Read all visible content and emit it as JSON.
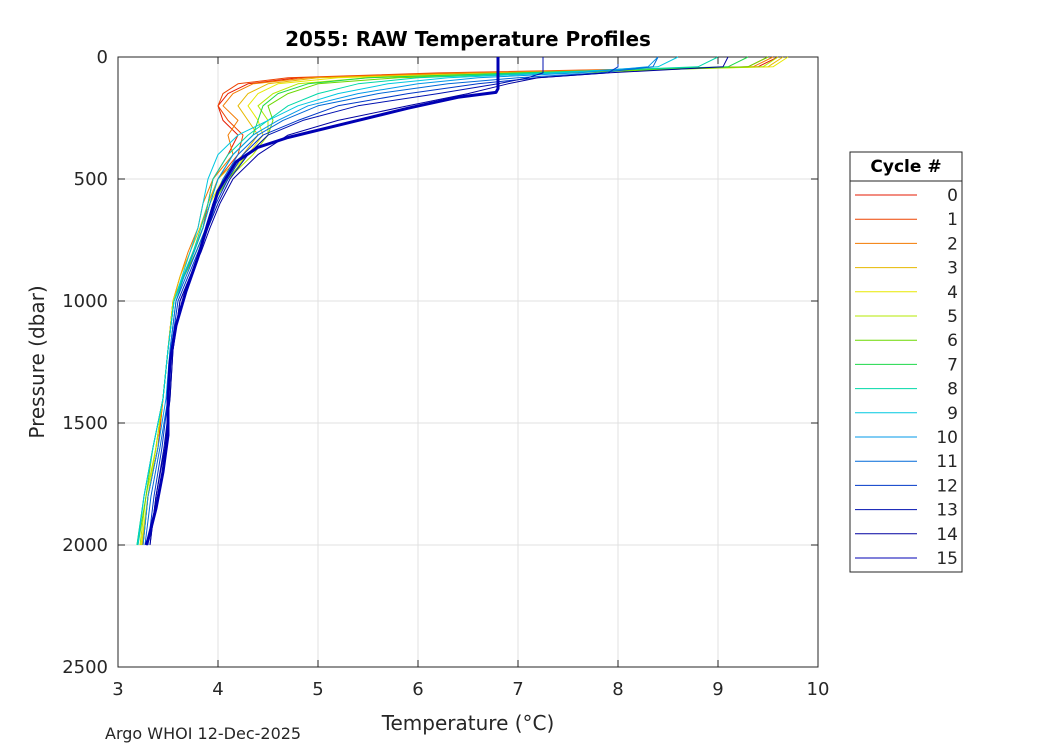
{
  "chart_data": {
    "type": "line",
    "title": "2055: RAW Temperature Profiles",
    "xlabel": "Temperature (°C)",
    "ylabel": "Pressure (dbar)",
    "xlim": [
      3,
      10
    ],
    "ylim": [
      0,
      2500
    ],
    "y_reversed": true,
    "grid": true,
    "xticks": [
      3,
      4,
      5,
      6,
      7,
      8,
      9,
      10
    ],
    "yticks": [
      0,
      500,
      1000,
      1500,
      2000,
      2500
    ],
    "legend": {
      "title": "Cycle #",
      "placement": "east-outside"
    },
    "series": [
      {
        "name": "0",
        "color": "#e61a00",
        "width": 1,
        "x": [
          9.6,
          9.4,
          6.5,
          4.8,
          4.3,
          4.1,
          4.0,
          4.05,
          4.2,
          4.1,
          3.95,
          3.9,
          3.85,
          3.75,
          3.65,
          3.55,
          3.5,
          3.45,
          3.4,
          3.3,
          3.25
        ],
        "p": [
          0,
          40,
          65,
          85,
          110,
          150,
          200,
          260,
          320,
          400,
          500,
          600,
          700,
          800,
          900,
          1000,
          1200,
          1400,
          1600,
          1800,
          2000
        ]
      },
      {
        "name": "1",
        "color": "#ee4300",
        "width": 1,
        "x": [
          9.5,
          9.3,
          6.2,
          4.7,
          4.2,
          4.05,
          4.0,
          4.1,
          4.25,
          4.2,
          4.0,
          3.9,
          3.85,
          3.75,
          3.65,
          3.55,
          3.5,
          3.45,
          3.4,
          3.3,
          3.25
        ],
        "p": [
          0,
          40,
          65,
          85,
          110,
          150,
          200,
          260,
          320,
          400,
          500,
          600,
          700,
          800,
          900,
          1000,
          1200,
          1400,
          1600,
          1800,
          2000
        ]
      },
      {
        "name": "2",
        "color": "#f27a00",
        "width": 1,
        "x": [
          9.55,
          9.35,
          6.4,
          4.9,
          4.35,
          4.15,
          4.05,
          4.2,
          4.1,
          4.15,
          3.95,
          3.85,
          3.8,
          3.7,
          3.62,
          3.55,
          3.5,
          3.45,
          3.38,
          3.3,
          3.25
        ],
        "p": [
          0,
          40,
          65,
          85,
          110,
          150,
          200,
          260,
          320,
          400,
          500,
          600,
          700,
          800,
          900,
          1000,
          1200,
          1400,
          1600,
          1800,
          2000
        ]
      },
      {
        "name": "3",
        "color": "#e6b800",
        "width": 1,
        "x": [
          9.65,
          9.5,
          6.8,
          5.0,
          4.5,
          4.3,
          4.2,
          4.3,
          4.4,
          4.25,
          4.0,
          3.9,
          3.82,
          3.72,
          3.62,
          3.55,
          3.5,
          3.45,
          3.38,
          3.3,
          3.24
        ],
        "p": [
          0,
          40,
          65,
          85,
          110,
          150,
          200,
          260,
          320,
          400,
          500,
          600,
          700,
          800,
          900,
          1000,
          1200,
          1400,
          1600,
          1800,
          2000
        ]
      },
      {
        "name": "4",
        "color": "#e8e800",
        "width": 1,
        "x": [
          9.7,
          9.55,
          7.0,
          5.2,
          4.6,
          4.4,
          4.3,
          4.4,
          4.45,
          4.3,
          4.05,
          3.92,
          3.85,
          3.75,
          3.65,
          3.55,
          3.5,
          3.45,
          3.38,
          3.3,
          3.23
        ],
        "p": [
          0,
          40,
          65,
          85,
          110,
          150,
          200,
          260,
          320,
          400,
          500,
          600,
          700,
          800,
          900,
          1000,
          1200,
          1400,
          1600,
          1800,
          2000
        ]
      },
      {
        "name": "5",
        "color": "#b4e800",
        "width": 1,
        "x": [
          9.6,
          9.45,
          7.2,
          5.5,
          4.8,
          4.55,
          4.4,
          4.5,
          4.5,
          4.35,
          4.1,
          3.95,
          3.88,
          3.78,
          3.66,
          3.56,
          3.5,
          3.45,
          3.38,
          3.28,
          3.22
        ],
        "p": [
          0,
          40,
          65,
          85,
          110,
          150,
          200,
          260,
          320,
          400,
          500,
          600,
          700,
          800,
          900,
          1000,
          1200,
          1400,
          1600,
          1800,
          2000
        ]
      },
      {
        "name": "6",
        "color": "#6cd800",
        "width": 1,
        "x": [
          9.5,
          9.3,
          7.5,
          5.8,
          5.0,
          4.7,
          4.5,
          4.55,
          4.5,
          4.3,
          4.1,
          3.95,
          3.88,
          3.78,
          3.66,
          3.56,
          3.5,
          3.45,
          3.35,
          3.28,
          3.2
        ],
        "p": [
          0,
          40,
          65,
          85,
          110,
          150,
          200,
          260,
          320,
          400,
          500,
          600,
          700,
          800,
          900,
          1000,
          1200,
          1400,
          1600,
          1800,
          2000
        ]
      },
      {
        "name": "7",
        "color": "#1ed84a",
        "width": 1,
        "x": [
          9.3,
          9.1,
          7.0,
          5.5,
          4.9,
          4.6,
          4.45,
          4.4,
          4.35,
          4.15,
          4.0,
          3.92,
          3.85,
          3.76,
          3.66,
          3.56,
          3.5,
          3.45,
          3.35,
          3.26,
          3.19
        ],
        "p": [
          0,
          40,
          65,
          85,
          110,
          150,
          200,
          260,
          320,
          400,
          500,
          600,
          700,
          800,
          900,
          1000,
          1200,
          1400,
          1600,
          1800,
          2000
        ]
      },
      {
        "name": "8",
        "color": "#00d8a8",
        "width": 1,
        "x": [
          9.0,
          8.8,
          7.2,
          6.0,
          5.4,
          5.0,
          4.7,
          4.5,
          4.3,
          4.1,
          3.95,
          3.9,
          3.83,
          3.75,
          3.65,
          3.56,
          3.5,
          3.45,
          3.35,
          3.26,
          3.19
        ],
        "p": [
          0,
          40,
          65,
          85,
          110,
          150,
          200,
          260,
          320,
          400,
          500,
          600,
          700,
          800,
          900,
          1000,
          1200,
          1400,
          1600,
          1800,
          2000
        ]
      },
      {
        "name": "9",
        "color": "#00c8e0",
        "width": 1,
        "x": [
          8.6,
          8.4,
          7.4,
          6.3,
          5.7,
          5.2,
          4.8,
          4.5,
          4.2,
          4.0,
          3.9,
          3.85,
          3.8,
          3.72,
          3.64,
          3.56,
          3.5,
          3.45,
          3.35,
          3.26,
          3.2
        ],
        "p": [
          0,
          40,
          65,
          85,
          110,
          150,
          200,
          260,
          320,
          400,
          500,
          600,
          700,
          800,
          900,
          1000,
          1200,
          1400,
          1600,
          1800,
          2000
        ]
      },
      {
        "name": "10",
        "color": "#0098e8",
        "width": 1,
        "x": [
          8.4,
          8.3,
          7.6,
          6.6,
          6.0,
          5.4,
          4.9,
          4.6,
          4.35,
          4.15,
          4.0,
          3.92,
          3.85,
          3.76,
          3.66,
          3.58,
          3.52,
          3.48,
          3.4,
          3.3,
          3.25
        ],
        "p": [
          0,
          40,
          65,
          85,
          110,
          150,
          200,
          260,
          320,
          400,
          500,
          600,
          700,
          800,
          900,
          1000,
          1200,
          1400,
          1600,
          1800,
          2000
        ]
      },
      {
        "name": "11",
        "color": "#0068d8",
        "width": 1,
        "x": [
          8.4,
          8.35,
          7.8,
          7.0,
          6.3,
          5.6,
          5.0,
          4.65,
          4.4,
          4.2,
          4.05,
          3.95,
          3.88,
          3.78,
          3.68,
          3.58,
          3.52,
          3.5,
          3.42,
          3.33,
          3.27
        ],
        "p": [
          0,
          40,
          65,
          85,
          110,
          150,
          200,
          260,
          320,
          400,
          500,
          600,
          700,
          800,
          900,
          1000,
          1200,
          1400,
          1600,
          1800,
          2000
        ]
      },
      {
        "name": "12",
        "color": "#0038c8",
        "width": 1,
        "x": [
          8.0,
          8.0,
          7.9,
          7.2,
          6.6,
          5.9,
          5.2,
          4.8,
          4.45,
          4.25,
          4.1,
          3.98,
          3.9,
          3.8,
          3.7,
          3.6,
          3.53,
          3.5,
          3.44,
          3.36,
          3.3
        ],
        "p": [
          0,
          40,
          65,
          85,
          110,
          150,
          200,
          260,
          320,
          400,
          500,
          600,
          700,
          800,
          900,
          1000,
          1200,
          1400,
          1600,
          1800,
          2000
        ]
      },
      {
        "name": "13",
        "color": "#0010b0",
        "width": 1,
        "x": [
          7.25,
          7.25,
          7.25,
          7.1,
          6.8,
          6.2,
          5.4,
          4.85,
          4.5,
          4.3,
          4.12,
          4.0,
          3.9,
          3.82,
          3.72,
          3.62,
          3.55,
          3.52,
          3.46,
          3.38,
          3.32
        ],
        "p": [
          0,
          40,
          65,
          85,
          110,
          150,
          200,
          260,
          320,
          400,
          500,
          600,
          700,
          800,
          900,
          1000,
          1200,
          1400,
          1600,
          1800,
          2000
        ]
      },
      {
        "name": "14",
        "color": "#0000a0",
        "width": 1,
        "x": [
          9.1,
          9.05,
          7.9,
          7.2,
          6.9,
          6.5,
          5.9,
          5.2,
          4.7,
          4.4,
          4.15,
          4.02,
          3.92,
          3.83,
          3.72,
          3.62,
          3.55,
          3.52,
          3.47,
          3.38,
          3.32
        ],
        "p": [
          0,
          40,
          65,
          85,
          110,
          150,
          200,
          260,
          320,
          400,
          500,
          600,
          700,
          800,
          900,
          1000,
          1200,
          1400,
          1600,
          1800,
          2000
        ]
      },
      {
        "name": "15",
        "color": "#0000b4",
        "width": 3,
        "x": [
          6.8,
          6.8,
          6.8,
          6.8,
          6.8,
          6.78,
          6.4,
          5.9,
          5.2,
          4.7,
          4.4,
          4.18,
          4.0,
          3.9,
          3.8,
          3.68,
          3.58,
          3.52,
          3.5,
          3.5,
          3.45,
          3.38,
          3.3,
          3.28
        ],
        "p": [
          0,
          20,
          60,
          100,
          130,
          145,
          165,
          210,
          280,
          330,
          370,
          430,
          550,
          680,
          820,
          960,
          1100,
          1250,
          1400,
          1550,
          1700,
          1850,
          1980,
          2000
        ]
      }
    ]
  },
  "footer": {
    "text": "Argo WHOI 12-Dec-2025"
  }
}
